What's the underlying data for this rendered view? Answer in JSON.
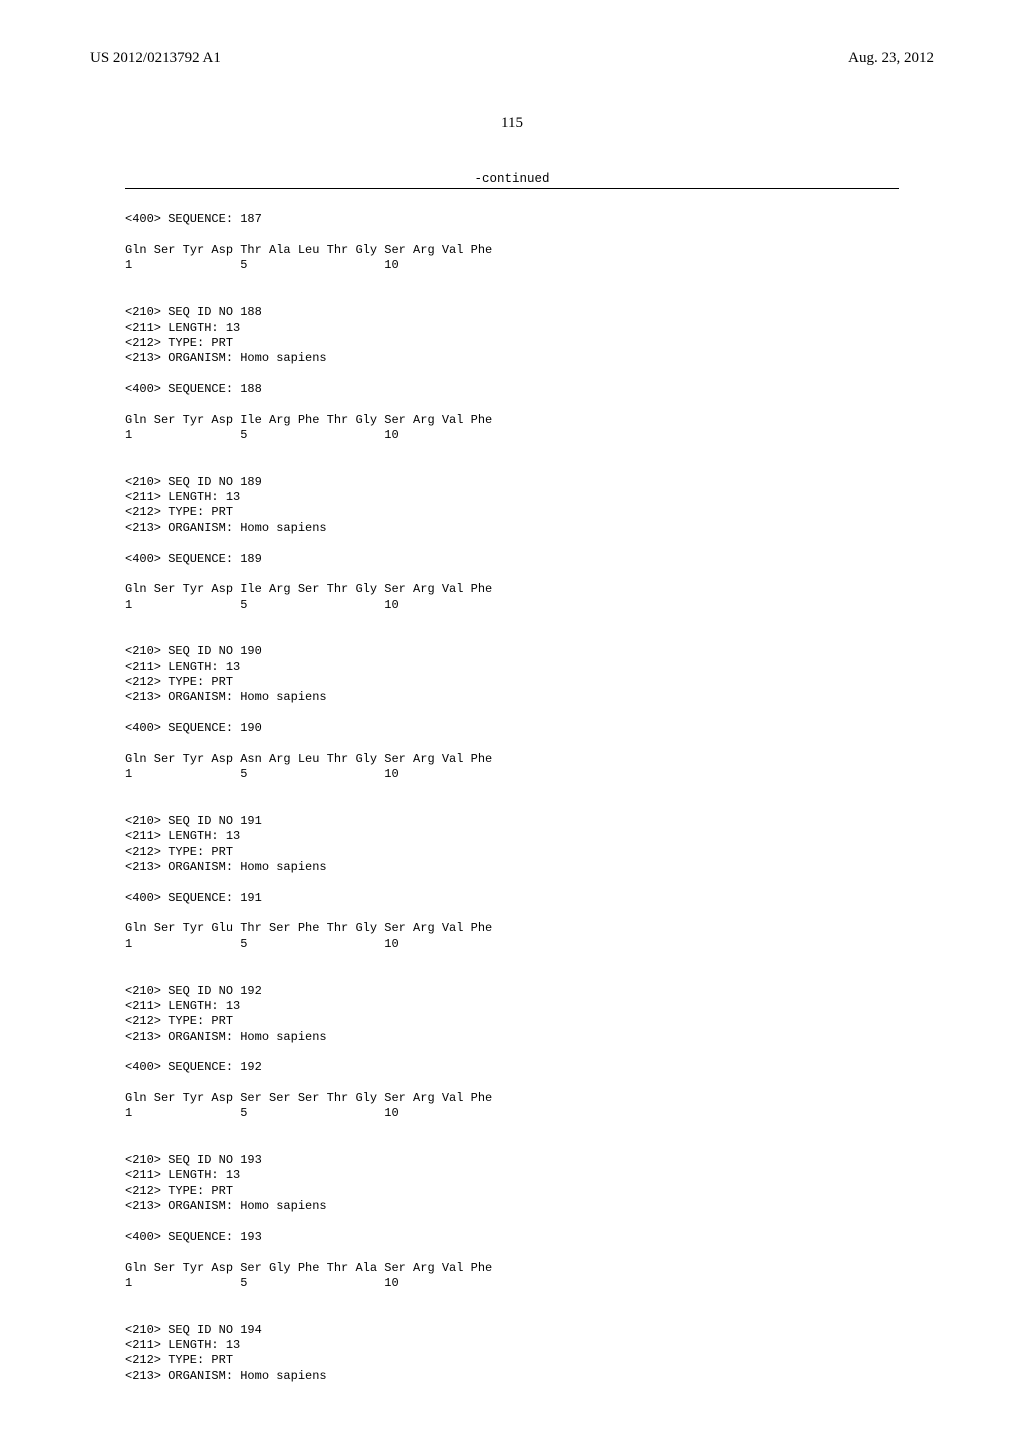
{
  "header": {
    "pub_number": "US 2012/0213792 A1",
    "pub_date": "Aug. 23, 2012"
  },
  "page_number": "115",
  "continued_label": "-continued",
  "top_seq": {
    "seq_line": "<400> SEQUENCE: 187",
    "res": "Gln Ser Tyr Asp Thr Ala Leu Thr Gly Ser Arg Val Phe",
    "nums": "1               5                   10"
  },
  "entries": [
    {
      "h1": "<210> SEQ ID NO 188",
      "h2": "<211> LENGTH: 13",
      "h3": "<212> TYPE: PRT",
      "h4": "<213> ORGANISM: Homo sapiens",
      "seq_line": "<400> SEQUENCE: 188",
      "res": "Gln Ser Tyr Asp Ile Arg Phe Thr Gly Ser Arg Val Phe",
      "nums": "1               5                   10"
    },
    {
      "h1": "<210> SEQ ID NO 189",
      "h2": "<211> LENGTH: 13",
      "h3": "<212> TYPE: PRT",
      "h4": "<213> ORGANISM: Homo sapiens",
      "seq_line": "<400> SEQUENCE: 189",
      "res": "Gln Ser Tyr Asp Ile Arg Ser Thr Gly Ser Arg Val Phe",
      "nums": "1               5                   10"
    },
    {
      "h1": "<210> SEQ ID NO 190",
      "h2": "<211> LENGTH: 13",
      "h3": "<212> TYPE: PRT",
      "h4": "<213> ORGANISM: Homo sapiens",
      "seq_line": "<400> SEQUENCE: 190",
      "res": "Gln Ser Tyr Asp Asn Arg Leu Thr Gly Ser Arg Val Phe",
      "nums": "1               5                   10"
    },
    {
      "h1": "<210> SEQ ID NO 191",
      "h2": "<211> LENGTH: 13",
      "h3": "<212> TYPE: PRT",
      "h4": "<213> ORGANISM: Homo sapiens",
      "seq_line": "<400> SEQUENCE: 191",
      "res": "Gln Ser Tyr Glu Thr Ser Phe Thr Gly Ser Arg Val Phe",
      "nums": "1               5                   10"
    },
    {
      "h1": "<210> SEQ ID NO 192",
      "h2": "<211> LENGTH: 13",
      "h3": "<212> TYPE: PRT",
      "h4": "<213> ORGANISM: Homo sapiens",
      "seq_line": "<400> SEQUENCE: 192",
      "res": "Gln Ser Tyr Asp Ser Ser Ser Thr Gly Ser Arg Val Phe",
      "nums": "1               5                   10"
    },
    {
      "h1": "<210> SEQ ID NO 193",
      "h2": "<211> LENGTH: 13",
      "h3": "<212> TYPE: PRT",
      "h4": "<213> ORGANISM: Homo sapiens",
      "seq_line": "<400> SEQUENCE: 193",
      "res": "Gln Ser Tyr Asp Ser Gly Phe Thr Ala Ser Arg Val Phe",
      "nums": "1               5                   10"
    },
    {
      "h1": "<210> SEQ ID NO 194",
      "h2": "<211> LENGTH: 13",
      "h3": "<212> TYPE: PRT",
      "h4": "<213> ORGANISM: Homo sapiens"
    }
  ]
}
